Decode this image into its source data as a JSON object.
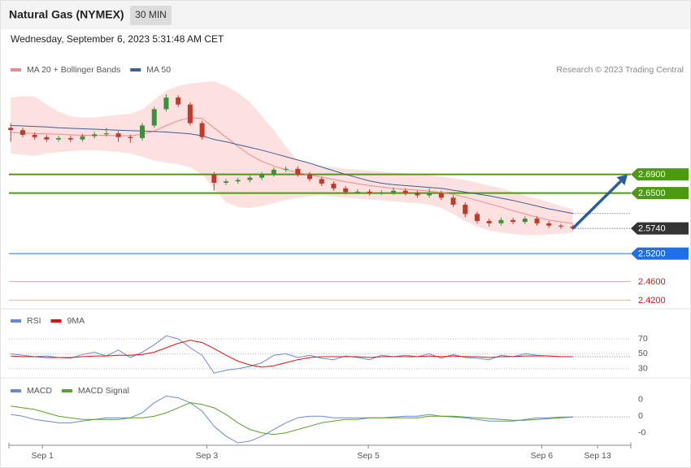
{
  "chart_data": {
    "type": "candlestick",
    "title": "Natural Gas (NYMEX)",
    "timeframe": "30 MIN",
    "date": "Wednesday, September 6, 2023 5:31:48 AM CET",
    "source": "Research © 2023 Trading Central",
    "candle_colors": {
      "up": "#3d8f3d",
      "down": "#c0392b"
    },
    "candles": [
      [
        2.79,
        2.8,
        2.76,
        2.785
      ],
      [
        2.785,
        2.79,
        2.77,
        2.775
      ],
      [
        2.775,
        2.78,
        2.765,
        2.77
      ],
      [
        2.77,
        2.775,
        2.76,
        2.765
      ],
      [
        2.765,
        2.773,
        2.76,
        2.768
      ],
      [
        2.768,
        2.773,
        2.76,
        2.765
      ],
      [
        2.765,
        2.777,
        2.76,
        2.772
      ],
      [
        2.772,
        2.781,
        2.767,
        2.776
      ],
      [
        2.776,
        2.79,
        2.771,
        2.778
      ],
      [
        2.778,
        2.783,
        2.76,
        2.77
      ],
      [
        2.77,
        2.775,
        2.758,
        2.768
      ],
      [
        2.768,
        2.8,
        2.763,
        2.795
      ],
      [
        2.795,
        2.835,
        2.79,
        2.83
      ],
      [
        2.83,
        2.862,
        2.825,
        2.855
      ],
      [
        2.855,
        2.86,
        2.835,
        2.84
      ],
      [
        2.84,
        2.845,
        2.795,
        2.8
      ],
      [
        2.8,
        2.805,
        2.765,
        2.77
      ],
      [
        2.69,
        2.695,
        2.655,
        2.672
      ],
      [
        2.672,
        2.68,
        2.667,
        2.675
      ],
      [
        2.675,
        2.683,
        2.67,
        2.678
      ],
      [
        2.678,
        2.688,
        2.673,
        2.683
      ],
      [
        2.683,
        2.695,
        2.678,
        2.69
      ],
      [
        2.69,
        2.705,
        2.685,
        2.7
      ],
      [
        2.7,
        2.707,
        2.695,
        2.702
      ],
      [
        2.702,
        2.707,
        2.685,
        2.69
      ],
      [
        2.69,
        2.695,
        2.675,
        2.68
      ],
      [
        2.68,
        2.685,
        2.665,
        2.67
      ],
      [
        2.67,
        2.675,
        2.655,
        2.66
      ],
      [
        2.66,
        2.665,
        2.647,
        2.652
      ],
      [
        2.652,
        2.658,
        2.648,
        2.653
      ],
      [
        2.653,
        2.658,
        2.645,
        2.65
      ],
      [
        2.65,
        2.656,
        2.646,
        2.651
      ],
      [
        2.651,
        2.662,
        2.646,
        2.655
      ],
      [
        2.655,
        2.66,
        2.645,
        2.65
      ],
      [
        2.65,
        2.655,
        2.64,
        2.645
      ],
      [
        2.645,
        2.66,
        2.64,
        2.65
      ],
      [
        2.65,
        2.655,
        2.635,
        2.64
      ],
      [
        2.64,
        2.645,
        2.62,
        2.625
      ],
      [
        2.625,
        2.63,
        2.598,
        2.605
      ],
      [
        2.605,
        2.61,
        2.585,
        2.59
      ],
      [
        2.59,
        2.595,
        2.578,
        2.585
      ],
      [
        2.585,
        2.598,
        2.58,
        2.592
      ],
      [
        2.592,
        2.597,
        2.583,
        2.588
      ],
      [
        2.588,
        2.6,
        2.583,
        2.595
      ],
      [
        2.595,
        2.6,
        2.58,
        2.585
      ],
      [
        2.585,
        2.59,
        2.575,
        2.58
      ],
      [
        2.58,
        2.584,
        2.573,
        2.578
      ],
      [
        2.578,
        2.582,
        2.57,
        2.574
      ]
    ],
    "series": [
      {
        "name": "MA 20 + Bollinger Bands",
        "color": "#f08a8a",
        "band_color": "#fde0e0",
        "values": [
          2.78,
          2.779,
          2.778,
          2.777,
          2.776,
          2.775,
          2.774,
          2.774,
          2.774,
          2.773,
          2.773,
          2.776,
          2.783,
          2.795,
          2.805,
          2.812,
          2.81,
          2.79,
          2.77,
          2.75,
          2.732,
          2.718,
          2.708,
          2.7,
          2.694,
          2.689,
          2.684,
          2.679,
          2.674,
          2.67,
          2.666,
          2.663,
          2.66,
          2.658,
          2.656,
          2.654,
          2.651,
          2.647,
          2.641,
          2.634,
          2.627,
          2.62,
          2.612,
          2.605,
          2.598,
          2.592,
          2.588,
          2.585
        ],
        "upper": [
          2.855,
          2.858,
          2.857,
          2.84,
          2.825,
          2.815,
          2.812,
          2.812,
          2.815,
          2.818,
          2.82,
          2.83,
          2.85,
          2.87,
          2.88,
          2.885,
          2.888,
          2.89,
          2.88,
          2.865,
          2.845,
          2.815,
          2.785,
          2.75,
          2.72,
          2.712,
          2.708,
          2.705,
          2.702,
          2.7,
          2.698,
          2.696,
          2.694,
          2.692,
          2.69,
          2.688,
          2.685,
          2.682,
          2.678,
          2.672,
          2.666,
          2.66,
          2.652,
          2.645,
          2.638,
          2.63,
          2.622,
          2.615
        ],
        "lower": [
          2.735,
          2.732,
          2.73,
          2.735,
          2.738,
          2.74,
          2.742,
          2.742,
          2.74,
          2.738,
          2.735,
          2.728,
          2.72,
          2.715,
          2.712,
          2.705,
          2.69,
          2.66,
          2.63,
          2.62,
          2.618,
          2.622,
          2.628,
          2.635,
          2.64,
          2.643,
          2.645,
          2.643,
          2.64,
          2.638,
          2.636,
          2.634,
          2.632,
          2.63,
          2.628,
          2.625,
          2.618,
          2.605,
          2.59,
          2.578,
          2.57,
          2.565,
          2.562,
          2.56,
          2.56,
          2.561,
          2.563,
          2.565
        ]
      },
      {
        "name": "MA 50",
        "color": "#3d5f95",
        "values": [
          2.795,
          2.794,
          2.793,
          2.792,
          2.79,
          2.789,
          2.788,
          2.787,
          2.786,
          2.785,
          2.784,
          2.783,
          2.782,
          2.781,
          2.779,
          2.777,
          2.773,
          2.765,
          2.76,
          2.754,
          2.748,
          2.742,
          2.735,
          2.728,
          2.721,
          2.714,
          2.706,
          2.698,
          2.69,
          2.683,
          2.676,
          2.671,
          2.668,
          2.666,
          2.664,
          2.662,
          2.66,
          2.656,
          2.652,
          2.648,
          2.644,
          2.639,
          2.634,
          2.628,
          2.622,
          2.616,
          2.611,
          2.606
        ]
      }
    ],
    "levels": [
      {
        "value": 2.69,
        "label": "2.6900",
        "color": "#4c9a10",
        "tag": true
      },
      {
        "value": 2.65,
        "label": "2.6500",
        "color": "#4c9a10",
        "tag": true
      },
      {
        "value": 2.52,
        "label": "2.5200",
        "color": "#1f6fe8",
        "tag": true
      },
      {
        "value": 2.46,
        "label": "2.4600",
        "color": "#e81010",
        "tag": false
      },
      {
        "value": 2.42,
        "label": "2.4200",
        "color": "#e81010",
        "tag": false
      }
    ],
    "last": {
      "value": 2.574,
      "label": "2.5740",
      "color": "#333333"
    },
    "ylim": [
      2.405,
      2.89
    ],
    "xlim": [
      -0.15,
      51.85
    ],
    "xticks": [
      {
        "value": 2.65,
        "label": "Sep 1"
      },
      {
        "value": 16.4,
        "label": "Sep 3"
      },
      {
        "value": 29.9,
        "label": "Sep 5"
      },
      {
        "value": 44.4,
        "label": "Sep 6"
      },
      {
        "value": 49.07,
        "label": "Sep 13"
      }
    ],
    "rsi": {
      "ylim": [
        21,
        107
      ],
      "yticks": [
        70,
        50,
        30
      ],
      "series": [
        {
          "name": "RSI",
          "color": "#6b88d8",
          "values": [
            50,
            48,
            46,
            47,
            45,
            44,
            49,
            52,
            47,
            55,
            45,
            52,
            62,
            74,
            70,
            58,
            48,
            24,
            28,
            30,
            33,
            38,
            48,
            50,
            45,
            48,
            44,
            42,
            47,
            45,
            42,
            48,
            46,
            48,
            46,
            50,
            44,
            49,
            45,
            44,
            42,
            48,
            46,
            50,
            48,
            47,
            46,
            46
          ]
        },
        {
          "name": "9MA",
          "color": "#e01010",
          "values": [
            47,
            46,
            46,
            45,
            45,
            45,
            46,
            47,
            47,
            48,
            48,
            49,
            52,
            58,
            64,
            68,
            65,
            57,
            48,
            40,
            35,
            32,
            34,
            38,
            42,
            45,
            46,
            46,
            46,
            46,
            45,
            46,
            46,
            46,
            46,
            47,
            46,
            47,
            46,
            46,
            45,
            46,
            46,
            47,
            47,
            47,
            46,
            46
          ]
        }
      ]
    },
    "macd": {
      "ylim": [
        -0.016,
        0.022
      ],
      "yticks": [
        {
          "value": 0.01,
          "label": "0"
        },
        {
          "value": 0,
          "label": "0"
        },
        {
          "value": -0.01,
          "label": "-0"
        }
      ],
      "series": [
        {
          "name": "MACD",
          "color": "#6b88d8",
          "values": [
            0.001,
            0.0,
            -0.002,
            -0.003,
            -0.004,
            -0.004,
            -0.003,
            -0.002,
            -0.001,
            -0.001,
            -0.001,
            0.002,
            0.008,
            0.012,
            0.011,
            0.008,
            0.003,
            -0.006,
            -0.012,
            -0.016,
            -0.015,
            -0.012,
            -0.008,
            -0.004,
            -0.001,
            0.0,
            0.0,
            -0.001,
            -0.001,
            -0.001,
            -0.001,
            -0.001,
            -0.0005,
            0.0,
            0.0,
            0.001,
            0.0,
            -0.0005,
            -0.001,
            -0.002,
            -0.003,
            -0.003,
            -0.003,
            -0.002,
            -0.001,
            -0.001,
            -0.0005,
            -0.0005
          ]
        },
        {
          "name": "MACD Signal",
          "color": "#5aa02c",
          "values": [
            0.006,
            0.005,
            0.004,
            0.002,
            0.0,
            -0.001,
            -0.002,
            -0.002,
            -0.002,
            -0.002,
            -0.001,
            -0.001,
            0.0,
            0.002,
            0.005,
            0.008,
            0.007,
            0.005,
            0.001,
            -0.004,
            -0.008,
            -0.01,
            -0.011,
            -0.01,
            -0.008,
            -0.006,
            -0.004,
            -0.003,
            -0.002,
            -0.002,
            -0.001,
            -0.001,
            -0.001,
            -0.001,
            -0.001,
            0.0,
            0.0,
            0.0,
            -0.0005,
            -0.001,
            -0.0015,
            -0.002,
            -0.0025,
            -0.0025,
            -0.002,
            -0.0015,
            -0.001,
            -0.0005
          ]
        }
      ]
    }
  }
}
